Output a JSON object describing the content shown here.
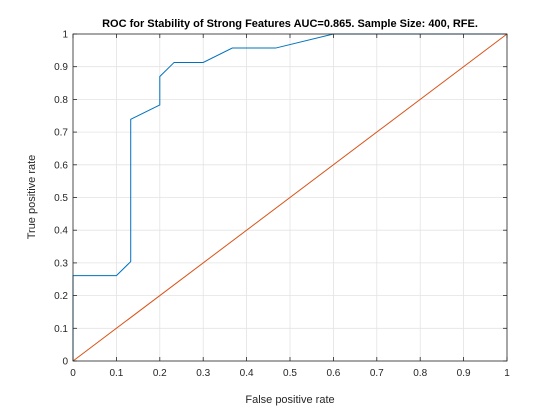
{
  "chart_data": {
    "type": "line",
    "title": "ROC for Stability of Strong Features AUC=0.865. Sample Size: 400, RFE.",
    "xlabel": "False positive rate",
    "ylabel": "True positive rate",
    "xlim": [
      0,
      1
    ],
    "ylim": [
      0,
      1
    ],
    "xticks": [
      "0",
      "0.1",
      "0.2",
      "0.3",
      "0.4",
      "0.5",
      "0.6",
      "0.7",
      "0.8",
      "0.9",
      "1"
    ],
    "yticks": [
      "0",
      "0.1",
      "0.2",
      "0.3",
      "0.4",
      "0.5",
      "0.6",
      "0.7",
      "0.8",
      "0.9",
      "1"
    ],
    "grid": true,
    "series": [
      {
        "color": "#0072BD",
        "x": [
          0,
          0,
          0.1,
          0.133,
          0.133,
          0.2,
          0.2,
          0.233,
          0.3,
          0.367,
          0.467,
          0.6,
          1.0
        ],
        "y": [
          0,
          0.261,
          0.261,
          0.304,
          0.739,
          0.783,
          0.87,
          0.913,
          0.913,
          0.957,
          0.957,
          1.0,
          1.0
        ]
      },
      {
        "color": "#D95319",
        "x": [
          0,
          1
        ],
        "y": [
          0,
          1
        ]
      }
    ]
  }
}
